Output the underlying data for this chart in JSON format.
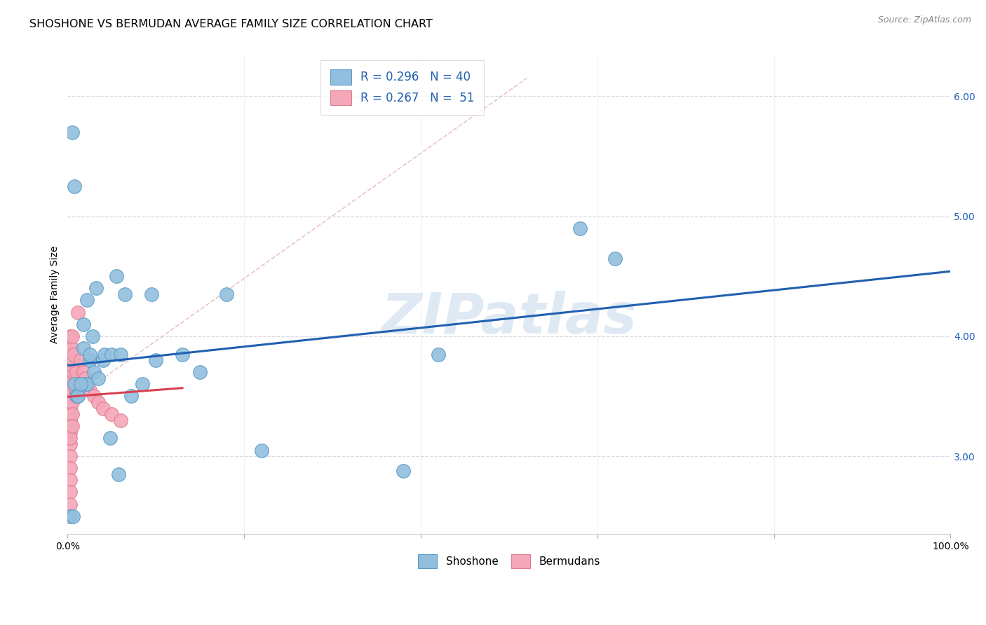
{
  "title": "SHOSHONE VS BERMUDAN AVERAGE FAMILY SIZE CORRELATION CHART",
  "source": "Source: ZipAtlas.com",
  "ylabel": "Average Family Size",
  "xlim": [
    0.0,
    1.0
  ],
  "ylim": [
    2.35,
    6.35
  ],
  "yticks": [
    3.0,
    4.0,
    5.0,
    6.0
  ],
  "shoshone_x": [
    0.008,
    0.012,
    0.018,
    0.02,
    0.022,
    0.025,
    0.028,
    0.03,
    0.032,
    0.035,
    0.04,
    0.042,
    0.048,
    0.05,
    0.055,
    0.058,
    0.06,
    0.065,
    0.072,
    0.085,
    0.095,
    0.1,
    0.13,
    0.15,
    0.18,
    0.22,
    0.38,
    0.42,
    0.58,
    0.62,
    0.005,
    0.008,
    0.01,
    0.012,
    0.015,
    0.018,
    0.022,
    0.025,
    0.003,
    0.006
  ],
  "shoshone_y": [
    3.6,
    3.5,
    4.1,
    3.6,
    3.6,
    3.8,
    4.0,
    3.7,
    4.4,
    3.65,
    3.8,
    3.85,
    3.15,
    3.85,
    4.5,
    2.85,
    3.85,
    4.35,
    3.5,
    3.6,
    4.35,
    3.8,
    3.85,
    3.7,
    4.35,
    3.05,
    2.88,
    3.85,
    4.9,
    4.65,
    5.7,
    5.25,
    3.5,
    3.5,
    3.6,
    3.9,
    4.3,
    3.85,
    2.5,
    2.5
  ],
  "bermudan_x": [
    0.003,
    0.003,
    0.003,
    0.003,
    0.003,
    0.003,
    0.003,
    0.003,
    0.003,
    0.003,
    0.003,
    0.003,
    0.003,
    0.003,
    0.003,
    0.003,
    0.003,
    0.003,
    0.003,
    0.003,
    0.005,
    0.005,
    0.005,
    0.005,
    0.005,
    0.005,
    0.005,
    0.005,
    0.005,
    0.005,
    0.007,
    0.007,
    0.007,
    0.007,
    0.007,
    0.008,
    0.009,
    0.01,
    0.01,
    0.01,
    0.012,
    0.015,
    0.018,
    0.02,
    0.022,
    0.025,
    0.03,
    0.035,
    0.04,
    0.05,
    0.06
  ],
  "bermudan_y": [
    3.8,
    3.7,
    3.6,
    3.5,
    3.4,
    3.3,
    3.2,
    3.1,
    3.0,
    2.9,
    2.8,
    2.7,
    2.6,
    3.9,
    4.0,
    3.55,
    3.45,
    3.35,
    3.25,
    3.15,
    3.5,
    3.6,
    3.7,
    3.8,
    3.9,
    4.0,
    3.55,
    3.45,
    3.35,
    3.25,
    3.65,
    3.7,
    3.75,
    3.8,
    3.85,
    3.6,
    3.55,
    3.7,
    3.5,
    3.6,
    4.2,
    3.8,
    3.7,
    3.65,
    3.6,
    3.55,
    3.5,
    3.45,
    3.4,
    3.35,
    3.3
  ],
  "shoshone_color": "#92bfde",
  "shoshone_edge": "#5a9ac5",
  "bermudan_color": "#f4a7b9",
  "bermudan_edge": "#e07a8f",
  "regression_blue_color": "#2060b0",
  "regression_pink_color": "#d94050",
  "diagonal_color": "#e8b8c0",
  "background_color": "#ffffff",
  "grid_color": "#d8d8e8",
  "title_fontsize": 11.5,
  "axis_label_fontsize": 10,
  "tick_fontsize": 10,
  "source_fontsize": 9,
  "watermark_text": "ZIPatlas",
  "watermark_color": "#b8cfe8",
  "watermark_fontsize": 58,
  "watermark_alpha": 0.45,
  "legend_R1": "R = 0.296",
  "legend_N1": "N = 40",
  "legend_R2": "R = 0.267",
  "legend_N2": "N =  51"
}
